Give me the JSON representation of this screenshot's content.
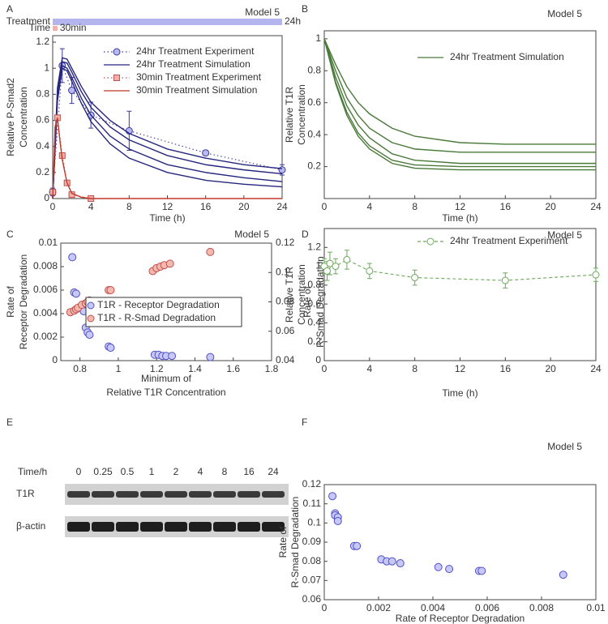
{
  "chart_data": [
    {
      "type": "line",
      "panel": "A",
      "title": "Model 5",
      "xlabel": "Time (h)",
      "ylabel": [
        "Relative P-Smad2",
        "Concentration"
      ],
      "xlim": [
        0,
        24
      ],
      "ylim": [
        0,
        1.25
      ],
      "xticks": [
        0,
        4,
        8,
        12,
        16,
        20,
        24
      ],
      "yticks": [
        0,
        0.2,
        0.4,
        0.6,
        0.8,
        1,
        1.2
      ],
      "bars": [
        {
          "label": "Treatment",
          "end_label": "24h",
          "duration": 24,
          "color": "#b4b4ee"
        },
        {
          "label": "Time",
          "end_label": "30min",
          "duration": 0.5,
          "color": "#f4b0a8"
        }
      ],
      "series": [
        {
          "name": "24hr Treatment Experiment",
          "line": "dotted",
          "marker": "circle",
          "color": "#3a3a9a",
          "fill": "#b8b8f2",
          "x": [
            0,
            1,
            2,
            4,
            8,
            16,
            24
          ],
          "values": [
            0.05,
            1.02,
            0.83,
            0.64,
            0.52,
            0.35,
            0.22
          ],
          "errors": [
            0.03,
            0.13,
            0.1,
            0.1,
            0.15,
            0.02,
            0.04
          ]
        },
        {
          "name": "24hr Treatment Simulation",
          "line": "solid",
          "color": "#26267e",
          "x": [
            0,
            0.5,
            1,
            1.5,
            2,
            3,
            4,
            6,
            8,
            12,
            16,
            20,
            24
          ],
          "values": [
            0,
            0.85,
            1.08,
            1.07,
            1.0,
            0.86,
            0.74,
            0.6,
            0.5,
            0.38,
            0.31,
            0.26,
            0.23
          ]
        },
        {
          "line": "solid",
          "color": "#26267e",
          "x": [
            0,
            0.5,
            1,
            1.5,
            2,
            3,
            4,
            6,
            8,
            12,
            16,
            20,
            24
          ],
          "values": [
            0,
            0.8,
            1.05,
            1.04,
            0.97,
            0.82,
            0.7,
            0.55,
            0.45,
            0.33,
            0.26,
            0.22,
            0.19
          ]
        },
        {
          "line": "solid",
          "color": "#26267e",
          "x": [
            0,
            0.5,
            1,
            1.5,
            2,
            3,
            4,
            6,
            8,
            12,
            16,
            20,
            24
          ],
          "values": [
            0,
            0.78,
            1.02,
            1.0,
            0.93,
            0.77,
            0.64,
            0.48,
            0.38,
            0.26,
            0.2,
            0.16,
            0.13
          ]
        },
        {
          "line": "solid",
          "color": "#26267e",
          "x": [
            0,
            0.5,
            1,
            1.5,
            2,
            3,
            4,
            6,
            8,
            12,
            16,
            20,
            24
          ],
          "values": [
            0,
            0.75,
            1.0,
            0.98,
            0.9,
            0.73,
            0.59,
            0.42,
            0.31,
            0.2,
            0.14,
            0.11,
            0.09
          ]
        },
        {
          "name": "30min Treatment Experiment",
          "line": "dotted",
          "marker": "square",
          "color": "#c0504d",
          "fill": "#f4b0a8",
          "x": [
            0,
            0.5,
            1,
            1.5,
            2,
            4
          ],
          "values": [
            0.05,
            0.62,
            0.33,
            0.12,
            0.03,
            0.0
          ]
        },
        {
          "name": "30min Treatment Simulation",
          "line": "solid",
          "color": "#c0392b",
          "x": [
            0,
            0.25,
            0.5,
            0.75,
            1,
            1.5,
            2,
            3,
            4,
            24
          ],
          "values": [
            0,
            0.55,
            0.62,
            0.45,
            0.3,
            0.12,
            0.04,
            0.01,
            0,
            0
          ]
        }
      ]
    },
    {
      "type": "line",
      "panel": "B",
      "title": "Model 5",
      "xlabel": "Time (h)",
      "ylabel": [
        "Relative T1R",
        "Concentration"
      ],
      "xlim": [
        0,
        24
      ],
      "ylim": [
        0,
        1.05
      ],
      "xticks": [
        0,
        4,
        8,
        12,
        16,
        20,
        24
      ],
      "yticks": [
        0.2,
        0.4,
        0.6,
        0.8,
        1
      ],
      "series": [
        {
          "name": "24hr Treatment Simulation",
          "line": "solid",
          "color": "#4a7a3a",
          "x": [
            0,
            1,
            2,
            3,
            4,
            6,
            8,
            12,
            16,
            20,
            24
          ],
          "values": [
            1,
            0.72,
            0.52,
            0.39,
            0.31,
            0.22,
            0.19,
            0.18,
            0.18,
            0.18,
            0.18
          ]
        },
        {
          "line": "solid",
          "color": "#4a7a3a",
          "x": [
            0,
            1,
            2,
            3,
            4,
            6,
            8,
            12,
            16,
            20,
            24
          ],
          "values": [
            1,
            0.73,
            0.54,
            0.41,
            0.33,
            0.24,
            0.21,
            0.2,
            0.2,
            0.2,
            0.2
          ]
        },
        {
          "line": "solid",
          "color": "#4a7a3a",
          "x": [
            0,
            1,
            2,
            3,
            4,
            6,
            8,
            12,
            16,
            20,
            24
          ],
          "values": [
            1,
            0.76,
            0.58,
            0.46,
            0.38,
            0.28,
            0.24,
            0.22,
            0.22,
            0.22,
            0.22
          ]
        },
        {
          "line": "solid",
          "color": "#4a7a3a",
          "x": [
            0,
            1,
            2,
            3,
            4,
            6,
            8,
            12,
            16,
            20,
            24
          ],
          "values": [
            1,
            0.8,
            0.63,
            0.52,
            0.44,
            0.35,
            0.31,
            0.29,
            0.29,
            0.29,
            0.29
          ]
        },
        {
          "line": "solid",
          "color": "#4a7a3a",
          "x": [
            0,
            1,
            2,
            3,
            4,
            6,
            8,
            12,
            16,
            20,
            24
          ],
          "values": [
            1,
            0.84,
            0.7,
            0.6,
            0.53,
            0.44,
            0.39,
            0.35,
            0.34,
            0.34,
            0.34
          ]
        }
      ]
    },
    {
      "type": "scatter",
      "panel": "C",
      "title": "Model 5",
      "xlabel": [
        "Minimum of",
        "Relative T1R Concentration"
      ],
      "ylabel": [
        "Rate of",
        "Receptor Degradation"
      ],
      "y2label": [
        "Rate of",
        "R-Smad Degradation"
      ],
      "xlim": [
        0.7,
        1.8
      ],
      "ylim": [
        0,
        0.01
      ],
      "y2lim": [
        0.04,
        0.12
      ],
      "xticks": [
        0.8,
        1,
        1.2,
        1.4,
        1.6,
        1.8
      ],
      "yticks": [
        0,
        0.002,
        0.004,
        0.006,
        0.008,
        0.01
      ],
      "y2ticks": [
        0.04,
        0.06,
        0.08,
        0.1,
        0.12
      ],
      "series": [
        {
          "name": "T1R - Receptor Degradation",
          "marker": "circle",
          "color": "#5050c8",
          "fill": "#c8c8f8",
          "x": [
            0.76,
            0.77,
            0.78,
            0.8,
            0.82,
            0.83,
            0.84,
            0.85,
            0.95,
            0.96,
            1.19,
            1.21,
            1.23,
            1.25,
            1.28,
            1.48
          ],
          "values": [
            0.0088,
            0.0058,
            0.0057,
            0.0045,
            0.0042,
            0.0028,
            0.0024,
            0.0022,
            0.0012,
            0.0011,
            0.0005,
            0.0005,
            0.0004,
            0.0004,
            0.0004,
            0.0003
          ]
        },
        {
          "name": "T1R - R-Smad Degradation",
          "marker": "circle",
          "color": "#c0504d",
          "fill": "#f4b8ae",
          "axis": "y2",
          "x": [
            0.75,
            0.77,
            0.78,
            0.79,
            0.81,
            0.83,
            0.84,
            0.85,
            0.95,
            0.96,
            1.18,
            1.2,
            1.22,
            1.24,
            1.27,
            1.48
          ],
          "values": [
            0.073,
            0.074,
            0.075,
            0.076,
            0.078,
            0.079,
            0.08,
            0.081,
            0.088,
            0.088,
            0.101,
            0.103,
            0.104,
            0.105,
            0.106,
            0.114
          ]
        }
      ]
    },
    {
      "type": "line",
      "panel": "D",
      "title": "Model 5",
      "xlabel": "Time (h)",
      "ylabel": [
        "Relative T1R",
        "Concentration"
      ],
      "xlim": [
        0,
        24
      ],
      "ylim": [
        0,
        1.4
      ],
      "xticks": [
        0,
        4,
        8,
        12,
        16,
        20,
        24
      ],
      "yticks": [
        0,
        0.2,
        0.4,
        0.6,
        0.8,
        1,
        1.2
      ],
      "series": [
        {
          "name": "24hr Treatment Experiment",
          "line": "dashed",
          "marker": "circle",
          "color": "#6aaa5a",
          "fill": "#ffffff",
          "x": [
            0,
            0.25,
            0.5,
            1,
            2,
            4,
            8,
            16,
            24
          ],
          "values": [
            1.0,
            0.95,
            1.03,
            1.0,
            1.07,
            0.95,
            0.88,
            0.85,
            0.91
          ],
          "errors": [
            0.08,
            0.1,
            0.12,
            0.08,
            0.1,
            0.08,
            0.08,
            0.08,
            0.07
          ]
        }
      ]
    },
    {
      "type": "blot",
      "panel": "E",
      "xlabel": "Time/h",
      "categories": [
        "0",
        "0.25",
        "0.5",
        "1",
        "2",
        "4",
        "8",
        "16",
        "24"
      ],
      "rows": [
        "T1R",
        "β-actin"
      ]
    },
    {
      "type": "scatter",
      "panel": "F",
      "title": "Model 5",
      "xlabel": "Rate of Receptor Degradation",
      "ylabel": [
        "Rate of",
        "R-Smad Degradation"
      ],
      "xlim": [
        0,
        0.01
      ],
      "ylim": [
        0.06,
        0.12
      ],
      "xticks": [
        0,
        0.002,
        0.004,
        0.006,
        0.008,
        0.01
      ],
      "yticks": [
        0.06,
        0.07,
        0.08,
        0.09,
        0.1,
        0.11,
        0.12
      ],
      "series": [
        {
          "marker": "circle",
          "color": "#5050c8",
          "fill": "#c8c8f8",
          "x": [
            0.0003,
            0.0004,
            0.0004,
            0.0005,
            0.0005,
            0.0011,
            0.0012,
            0.0021,
            0.0023,
            0.0025,
            0.0028,
            0.0042,
            0.0046,
            0.0057,
            0.0058,
            0.0088
          ],
          "values": [
            0.114,
            0.105,
            0.104,
            0.103,
            0.101,
            0.088,
            0.088,
            0.081,
            0.08,
            0.08,
            0.079,
            0.077,
            0.076,
            0.075,
            0.075,
            0.073
          ]
        }
      ]
    }
  ]
}
